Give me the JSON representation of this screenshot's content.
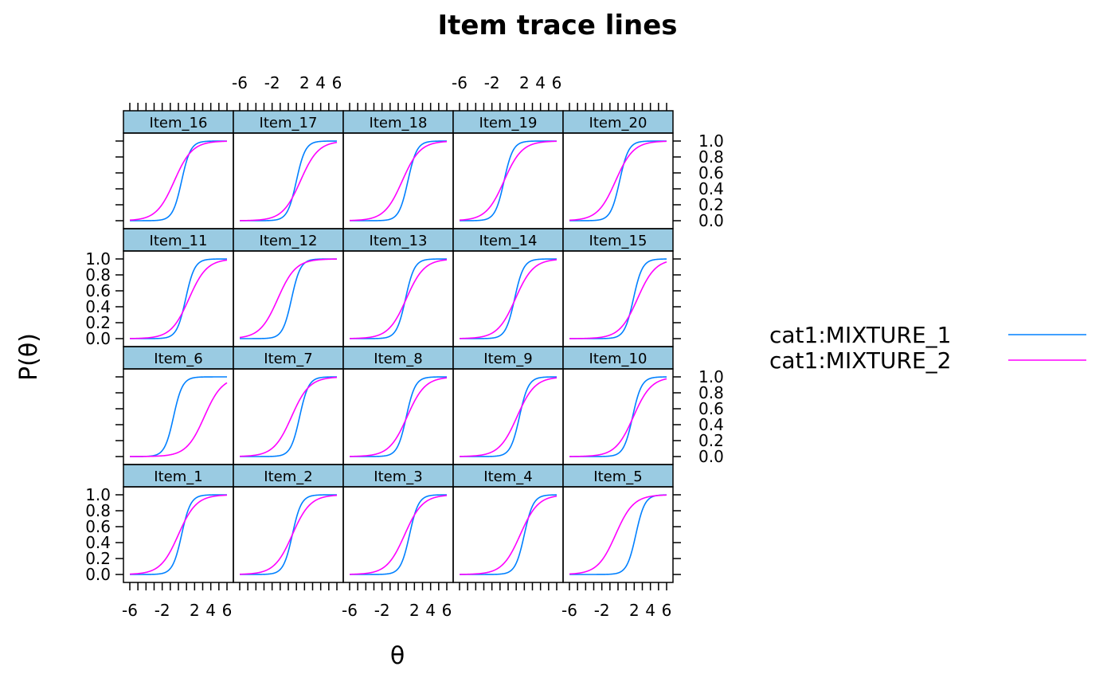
{
  "chart_data": {
    "type": "line",
    "title": "Item trace lines",
    "xlabel": "θ",
    "ylabel": "P(θ)",
    "xlim": [
      -6,
      6
    ],
    "ylim": [
      0,
      1
    ],
    "x_ticks": [
      -6,
      -2,
      2,
      4,
      6
    ],
    "y_ticks": [
      "0.0",
      "0.2",
      "0.4",
      "0.6",
      "0.8",
      "1.0"
    ],
    "legend_position": "right",
    "series": [
      {
        "name": "cat1:MIXTURE_1",
        "color": "#0080ff"
      },
      {
        "name": "cat1:MIXTURE_2",
        "color": "#ff00ff"
      }
    ],
    "panels": [
      {
        "label": "Item_1",
        "params": [
          {
            "a": 1.8,
            "b": 0.4
          },
          {
            "a": 0.9,
            "b": 0.0
          }
        ]
      },
      {
        "label": "Item_2",
        "params": [
          {
            "a": 1.8,
            "b": 0.5
          },
          {
            "a": 0.9,
            "b": 0.5
          }
        ]
      },
      {
        "label": "Item_3",
        "params": [
          {
            "a": 1.8,
            "b": 1.4
          },
          {
            "a": 0.9,
            "b": 0.8
          }
        ]
      },
      {
        "label": "Item_4",
        "params": [
          {
            "a": 1.8,
            "b": 2.0
          },
          {
            "a": 0.9,
            "b": 1.5
          }
        ]
      },
      {
        "label": "Item_5",
        "params": [
          {
            "a": 1.8,
            "b": 2.2
          },
          {
            "a": 0.9,
            "b": -0.3
          }
        ]
      },
      {
        "label": "Item_6",
        "params": [
          {
            "a": 1.8,
            "b": -0.6
          },
          {
            "a": 0.9,
            "b": 3.2
          }
        ]
      },
      {
        "label": "Item_7",
        "params": [
          {
            "a": 1.8,
            "b": 1.4
          },
          {
            "a": 0.9,
            "b": 0.4
          }
        ]
      },
      {
        "label": "Item_8",
        "params": [
          {
            "a": 1.8,
            "b": 1.0
          },
          {
            "a": 0.9,
            "b": 1.1
          }
        ]
      },
      {
        "label": "Item_9",
        "params": [
          {
            "a": 1.8,
            "b": 1.4
          },
          {
            "a": 0.9,
            "b": 1.1
          }
        ]
      },
      {
        "label": "Item_10",
        "params": [
          {
            "a": 1.8,
            "b": 1.8
          },
          {
            "a": 0.9,
            "b": 1.9
          }
        ]
      },
      {
        "label": "Item_11",
        "params": [
          {
            "a": 1.8,
            "b": 0.9
          },
          {
            "a": 0.9,
            "b": 1.3
          }
        ]
      },
      {
        "label": "Item_12",
        "params": [
          {
            "a": 1.8,
            "b": 0.4
          },
          {
            "a": 0.9,
            "b": -1.3
          }
        ]
      },
      {
        "label": "Item_13",
        "params": [
          {
            "a": 1.8,
            "b": 0.9
          },
          {
            "a": 0.9,
            "b": 1.0
          }
        ]
      },
      {
        "label": "Item_14",
        "params": [
          {
            "a": 1.8,
            "b": 0.8
          },
          {
            "a": 0.9,
            "b": 0.9
          }
        ]
      },
      {
        "label": "Item_15",
        "params": [
          {
            "a": 1.8,
            "b": 1.9
          },
          {
            "a": 0.9,
            "b": 2.4
          }
        ]
      },
      {
        "label": "Item_16",
        "params": [
          {
            "a": 1.8,
            "b": 0.4
          },
          {
            "a": 0.9,
            "b": -0.5
          }
        ]
      },
      {
        "label": "Item_17",
        "params": [
          {
            "a": 1.8,
            "b": 1.0
          },
          {
            "a": 0.9,
            "b": 1.5
          }
        ]
      },
      {
        "label": "Item_18",
        "params": [
          {
            "a": 1.8,
            "b": 1.2
          },
          {
            "a": 0.9,
            "b": 0.5
          }
        ]
      },
      {
        "label": "Item_19",
        "params": [
          {
            "a": 1.8,
            "b": -0.5
          },
          {
            "a": 0.9,
            "b": -0.5
          }
        ]
      },
      {
        "label": "Item_20",
        "params": [
          {
            "a": 1.8,
            "b": 0.2
          },
          {
            "a": 0.9,
            "b": -0.3
          }
        ]
      }
    ]
  }
}
